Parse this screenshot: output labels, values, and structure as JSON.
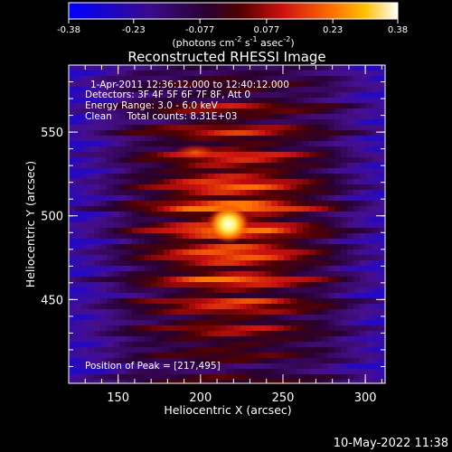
{
  "colorbar": {
    "ticks": [
      "-0.38",
      "-0.23",
      "-0.077",
      "0.077",
      "0.23",
      "0.38"
    ],
    "unit_label": "(photons cm",
    "unit_sup1": "-2",
    "unit_mid": " s",
    "unit_sup2": "-1",
    "unit_mid2": " asec",
    "unit_sup3": "-2",
    "unit_end": ")",
    "min": -0.38,
    "max": 0.38
  },
  "chart_data": {
    "type": "heatmap",
    "title": "Reconstructed RHESSI Image",
    "xlabel": "Heliocentric X (arcsec)",
    "ylabel": "Heliocentric Y (arcsec)",
    "xlim": [
      120,
      312
    ],
    "ylim": [
      400,
      590
    ],
    "x_ticks": [
      150,
      200,
      250,
      300
    ],
    "y_ticks": [
      450,
      500,
      550
    ],
    "x_tick_labels": [
      "150",
      "200",
      "250",
      "300"
    ],
    "y_tick_labels": [
      "450",
      "500",
      "550"
    ],
    "peak": [
      217,
      495
    ],
    "secondary_source": [
      197,
      538
    ],
    "annotations": {
      "time_range": "1-Apr-2011 12:36:12.000 to 12:40:12.000",
      "detectors": "Detectors: 3F 4F 5F 6F 7F 8F, Att 0",
      "energy": "Energy Range: 3.0 - 6.0 keV",
      "clean": "Clean     Total counts: 8.31E+03",
      "peak_text": "Position of Peak = [217,495]"
    }
  },
  "footer": {
    "timestamp": "10-May-2022 11:38"
  },
  "colors": {
    "background": "#000000",
    "axis": "#ffffff"
  }
}
